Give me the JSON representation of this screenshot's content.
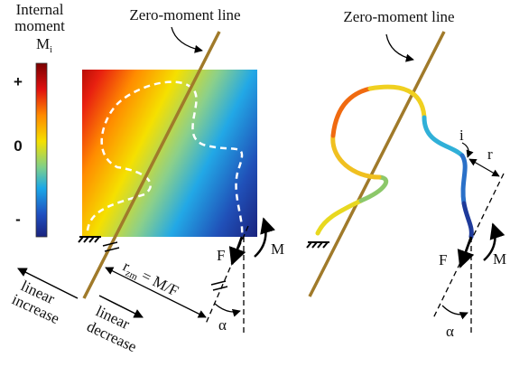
{
  "colorbar": {
    "title": [
      "Internal",
      "moment"
    ],
    "symbol": "M",
    "subscript": "i",
    "ticks": [
      "+",
      "0",
      "-"
    ]
  },
  "left": {
    "line_label": "Zero-moment line",
    "force": "F",
    "moment": "M",
    "angle": "α",
    "distance": {
      "symbol": "r",
      "subscript": "zm",
      "formula": "= M/F"
    },
    "increase": [
      "linear",
      "increase"
    ],
    "decrease": [
      "linear",
      "decrease"
    ]
  },
  "right": {
    "line_label": "Zero-moment line",
    "force": "F",
    "moment": "M",
    "angle": "α",
    "point": "i",
    "radius": "r"
  }
}
